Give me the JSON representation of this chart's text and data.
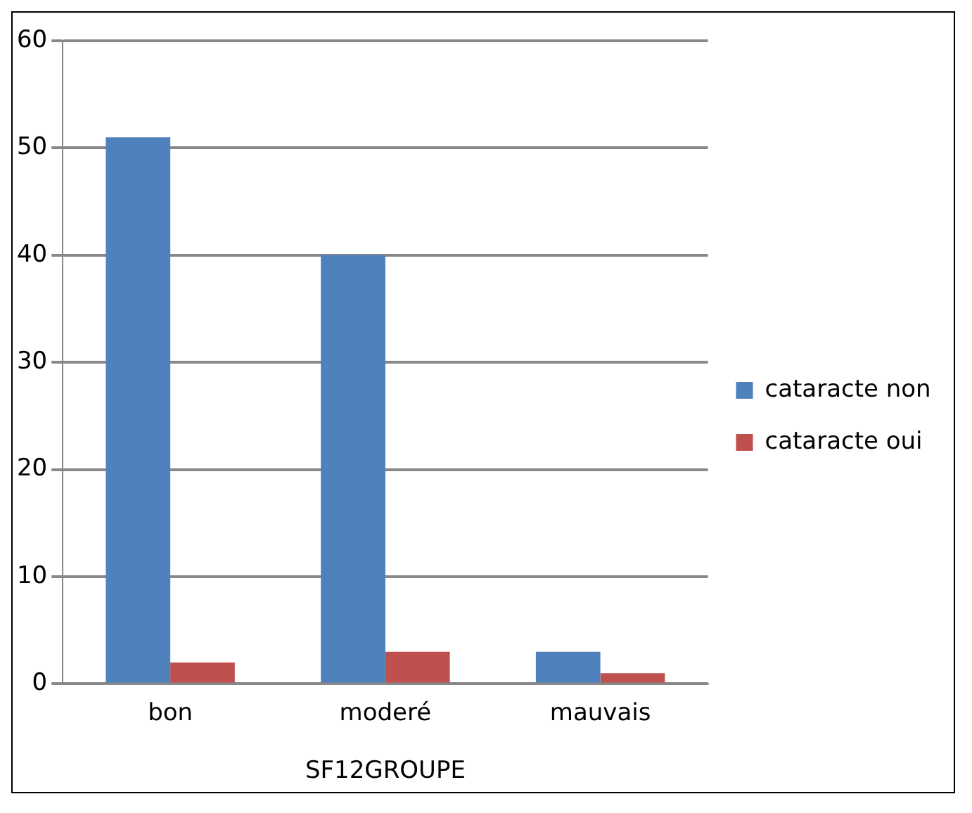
{
  "chart_data": {
    "type": "bar",
    "xlabel": "SF12GROUPE",
    "categories": [
      "bon",
      "moderé",
      "mauvais"
    ],
    "series": [
      {
        "name": "cataracte non",
        "color": "#4f81bd",
        "values": [
          51,
          40,
          3
        ]
      },
      {
        "name": "cataracte oui",
        "color": "#c0504d",
        "values": [
          2,
          3,
          1
        ]
      }
    ],
    "ylim": [
      0,
      60
    ],
    "yticks": [
      0,
      10,
      20,
      30,
      40,
      50,
      60
    ],
    "grid": "y",
    "legend": "right"
  }
}
